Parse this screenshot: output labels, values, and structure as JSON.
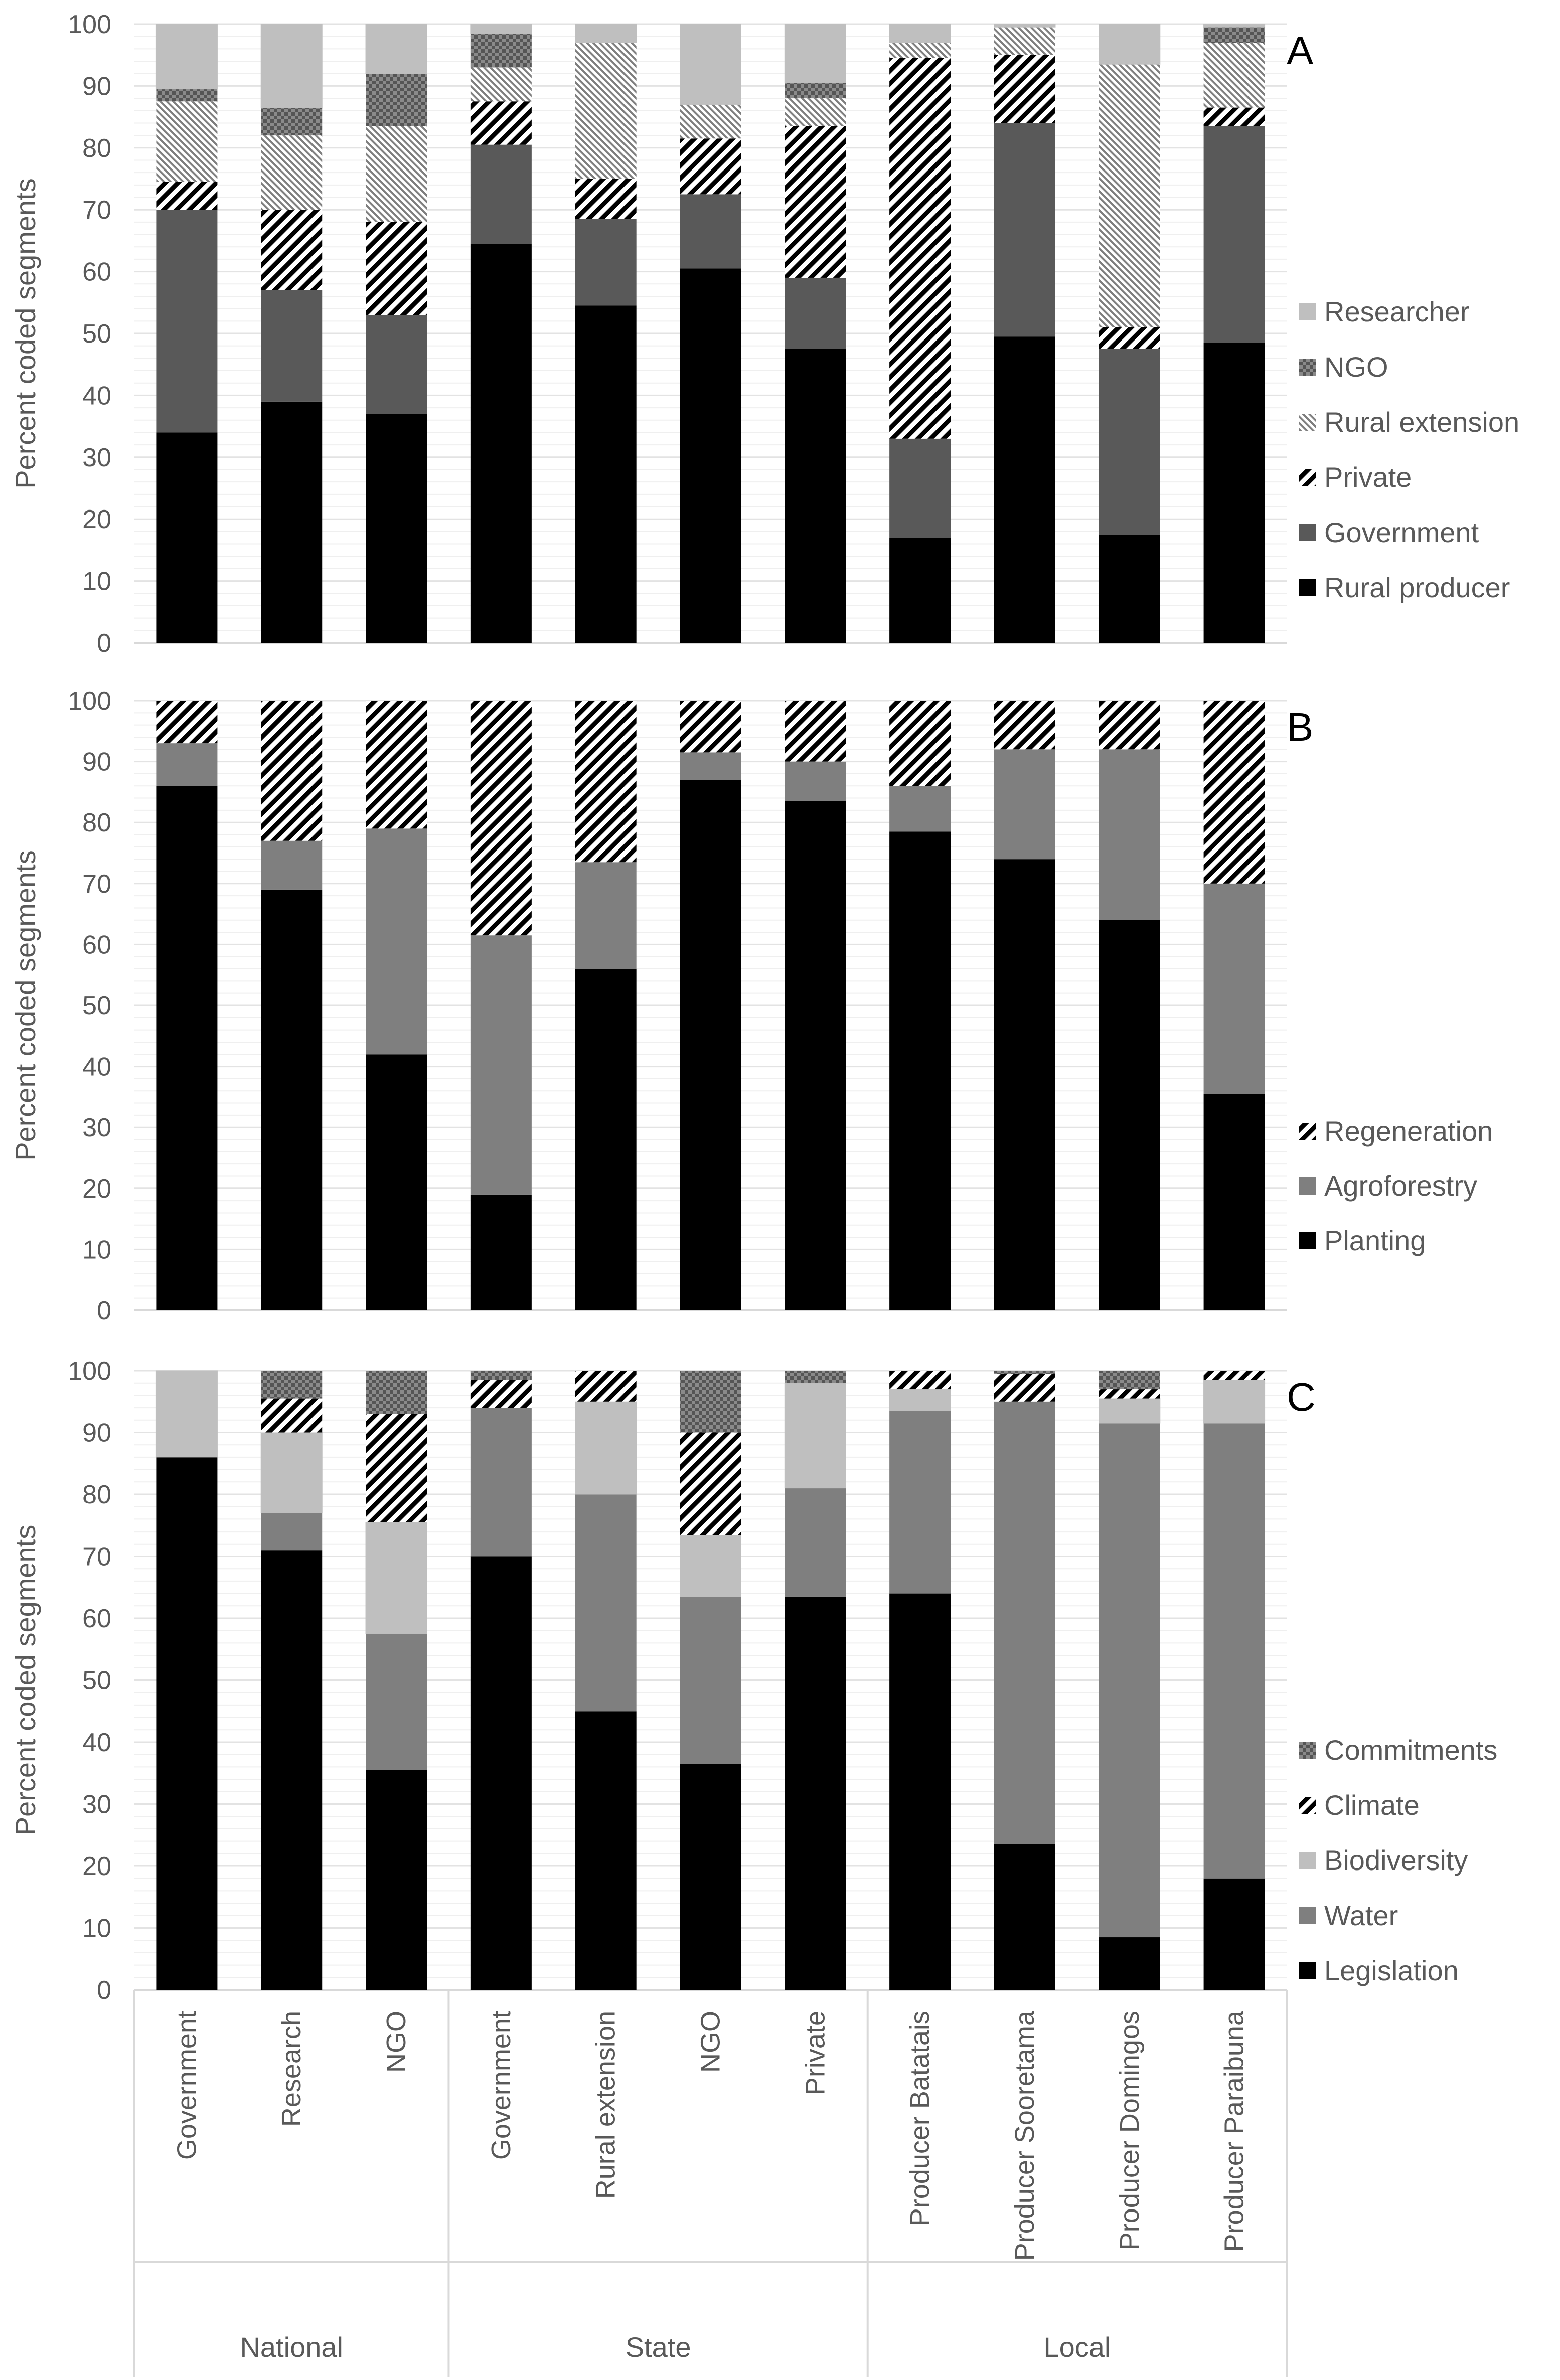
{
  "chart_data": [
    {
      "type": "bar",
      "stacked": true,
      "panel_label": "A",
      "ylabel": "Percent coded segments",
      "ylim": [
        0,
        100
      ],
      "yticks": [
        0,
        10,
        20,
        30,
        40,
        50,
        60,
        70,
        80,
        90,
        100
      ],
      "categories": [
        "Government",
        "Research",
        "NGO",
        "Government",
        "Rural extension",
        "NGO",
        "Private",
        "Producer Batatais",
        "Producer Sooretama",
        "Producer Domingos",
        "Producer Paraibuna"
      ],
      "series": [
        {
          "name": "Rural producer",
          "pattern": "black",
          "values": [
            34,
            39,
            37,
            64.5,
            54.5,
            60.5,
            47.5,
            17,
            49.5,
            17.5,
            48.5
          ]
        },
        {
          "name": "Government",
          "pattern": "dark",
          "values": [
            36,
            18,
            16,
            16,
            14,
            12,
            11.5,
            16,
            34.5,
            30,
            35
          ]
        },
        {
          "name": "Private",
          "pattern": "diag",
          "values": [
            4.5,
            13,
            15,
            7,
            6.5,
            9,
            24.5,
            61.5,
            11,
            3.5,
            3
          ]
        },
        {
          "name": "Rural extension",
          "pattern": "fine",
          "values": [
            13,
            12,
            15.5,
            5.5,
            22,
            5.5,
            4.5,
            2.5,
            4.5,
            42.5,
            10.5
          ]
        },
        {
          "name": "NGO",
          "pattern": "cross",
          "values": [
            2,
            4.5,
            8.5,
            5.5,
            0,
            0,
            2.5,
            0,
            0,
            0,
            2.5
          ]
        },
        {
          "name": "Researcher",
          "pattern": "light",
          "values": [
            10.5,
            13.5,
            8,
            1.5,
            3,
            13,
            9.5,
            3,
            0.5,
            6.5,
            0.5
          ]
        }
      ],
      "legend_order": [
        "Researcher",
        "NGO",
        "Rural extension",
        "Private",
        "Government",
        "Rural producer"
      ]
    },
    {
      "type": "bar",
      "stacked": true,
      "panel_label": "B",
      "ylabel": "Percent coded segments",
      "ylim": [
        0,
        100
      ],
      "yticks": [
        0,
        10,
        20,
        30,
        40,
        50,
        60,
        70,
        80,
        90,
        100
      ],
      "categories": [
        "Government",
        "Research",
        "NGO",
        "Government",
        "Rural extension",
        "NGO",
        "Private",
        "Producer Batatais",
        "Producer Sooretama",
        "Producer Domingos",
        "Producer Paraibuna"
      ],
      "series": [
        {
          "name": "Planting",
          "pattern": "black",
          "values": [
            86,
            69,
            42,
            19,
            56,
            87,
            83.5,
            78.5,
            74,
            64,
            35.5
          ]
        },
        {
          "name": "Agroforestry",
          "pattern": "mid",
          "values": [
            7,
            8,
            37,
            42.5,
            17.5,
            4.5,
            6.5,
            7.5,
            18,
            28,
            34.5
          ]
        },
        {
          "name": "Regeneration",
          "pattern": "diag",
          "values": [
            7,
            23,
            21,
            38.5,
            26.5,
            8.5,
            10,
            14,
            8,
            8,
            30
          ]
        }
      ],
      "legend_order": [
        "Regeneration",
        "Agroforestry",
        "Planting"
      ]
    },
    {
      "type": "bar",
      "stacked": true,
      "panel_label": "C",
      "ylabel": "Percent coded segments",
      "ylim": [
        0,
        100
      ],
      "yticks": [
        0,
        10,
        20,
        30,
        40,
        50,
        60,
        70,
        80,
        90,
        100
      ],
      "categories": [
        "Government",
        "Research",
        "NGO",
        "Government",
        "Rural extension",
        "NGO",
        "Private",
        "Producer Batatais",
        "Producer Sooretama",
        "Producer Domingos",
        "Producer Paraibuna"
      ],
      "series": [
        {
          "name": "Legislation",
          "pattern": "black",
          "values": [
            86,
            71,
            35.5,
            70,
            45,
            36.5,
            63.5,
            64,
            23.5,
            8.5,
            18
          ]
        },
        {
          "name": "Water",
          "pattern": "mid",
          "values": [
            0,
            6,
            22,
            24,
            35,
            27,
            17.5,
            29.5,
            71.5,
            83,
            73.5
          ]
        },
        {
          "name": "Biodiversity",
          "pattern": "light",
          "values": [
            14,
            13,
            18,
            0,
            15,
            10,
            17,
            3.5,
            0,
            4,
            7
          ]
        },
        {
          "name": "Climate",
          "pattern": "diag",
          "values": [
            0,
            5.5,
            17.5,
            4.5,
            5,
            16.5,
            0,
            3,
            4.5,
            1.5,
            1.5
          ]
        },
        {
          "name": "Commitments",
          "pattern": "cross",
          "values": [
            0,
            4.5,
            7,
            1.5,
            0,
            10,
            2,
            0,
            0.5,
            3,
            0
          ]
        }
      ],
      "legend_order": [
        "Commitments",
        "Climate",
        "Biodiversity",
        "Water",
        "Legislation"
      ]
    }
  ],
  "groups": [
    {
      "label": "National",
      "count": 3
    },
    {
      "label": "State",
      "count": 4
    },
    {
      "label": "Local",
      "count": 4
    }
  ],
  "colors": {
    "black": "#000000",
    "dark": "#595959",
    "mid": "#7f7f7f",
    "light": "#bfbfbf",
    "axis": "#d9d9d9",
    "grid": "#e3e3e3",
    "text": "#595959"
  }
}
